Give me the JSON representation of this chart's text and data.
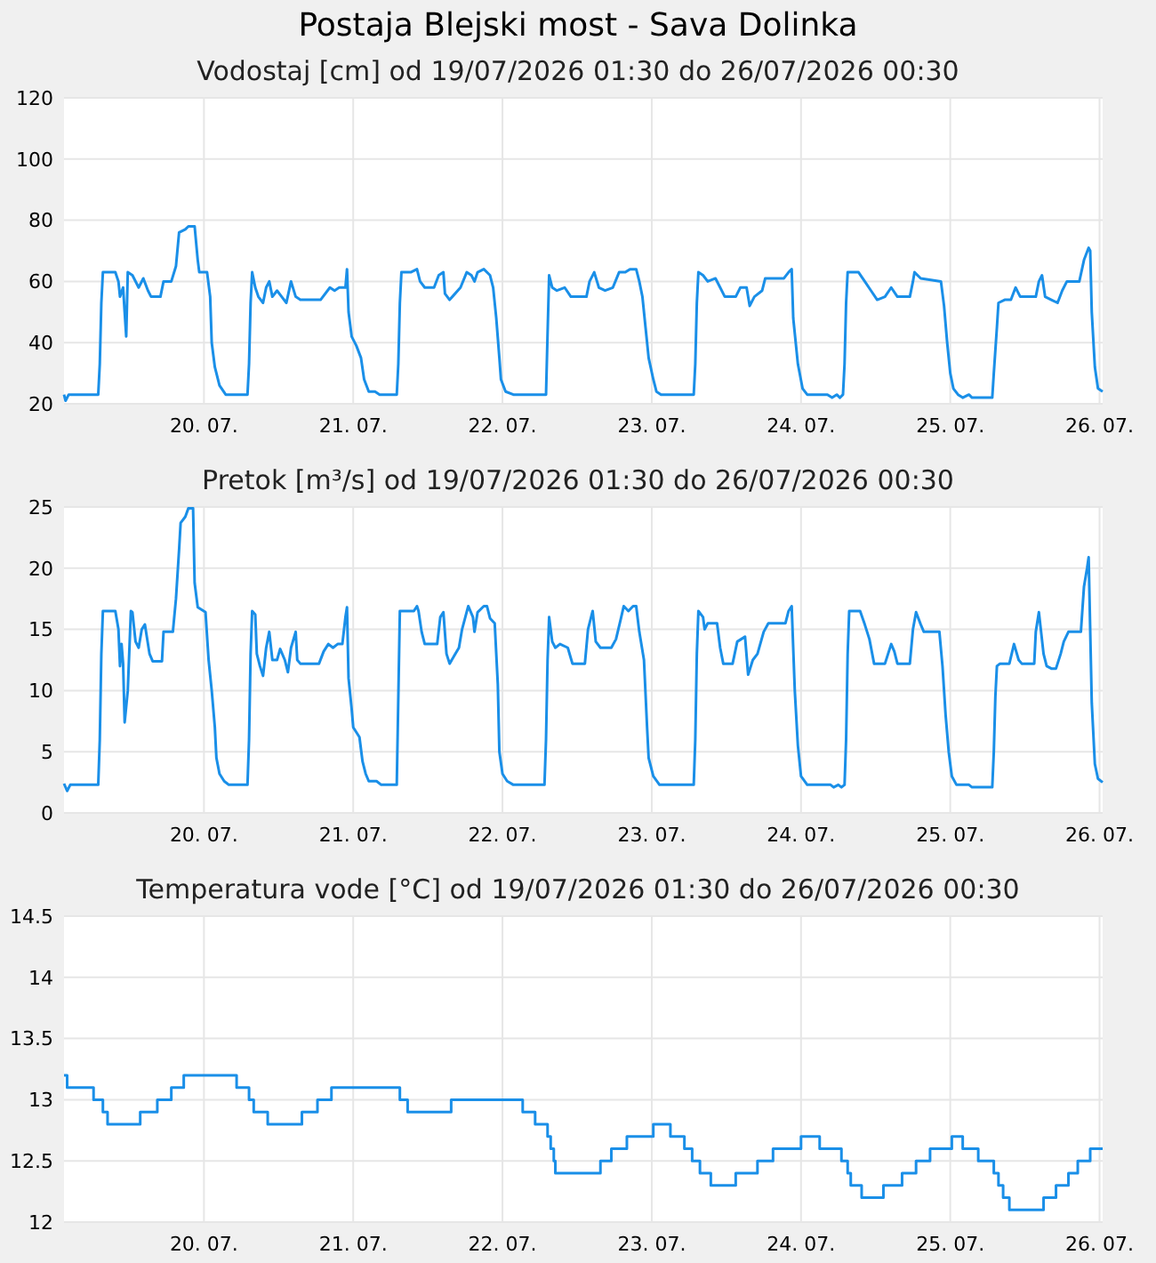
{
  "chart_data": [
    {
      "type": "line",
      "title": "Postaja Blejski most - Sava Dolinka",
      "subtitle": "Vodostaj [cm] od 19/07/2026 01:30 do 26/07/2026 00:30",
      "color": "#1a8fe8",
      "grid": true,
      "xlim": [
        "2026-07-19T01:30",
        "2026-07-26T00:30"
      ],
      "xticks": [
        {
          "value": "2026-07-20",
          "label": "20. 07."
        },
        {
          "value": "2026-07-21",
          "label": "21. 07."
        },
        {
          "value": "2026-07-22",
          "label": "22. 07."
        },
        {
          "value": "2026-07-23",
          "label": "23. 07."
        },
        {
          "value": "2026-07-24",
          "label": "24. 07."
        },
        {
          "value": "2026-07-25",
          "label": "25. 07."
        },
        {
          "value": "2026-07-26",
          "label": "26. 07."
        }
      ],
      "ylim": [
        20,
        120
      ],
      "yticks": [
        20,
        40,
        60,
        80,
        100,
        120
      ],
      "x": [
        "2026-07-19T01:30",
        "2026-07-19T01:45",
        "2026-07-19T02:15",
        "2026-07-19T07:00",
        "2026-07-19T07:15",
        "2026-07-19T07:30",
        "2026-07-19T07:45",
        "2026-07-19T09:45",
        "2026-07-19T10:15",
        "2026-07-19T10:30",
        "2026-07-19T11:00",
        "2026-07-19T11:15",
        "2026-07-19T11:30",
        "2026-07-19T11:45",
        "2026-07-19T12:30",
        "2026-07-19T13:30",
        "2026-07-19T14:15",
        "2026-07-19T15:00",
        "2026-07-19T15:30",
        "2026-07-19T17:00",
        "2026-07-19T17:30",
        "2026-07-19T18:45",
        "2026-07-19T19:30",
        "2026-07-19T20:00",
        "2026-07-19T21:00",
        "2026-07-19T21:30",
        "2026-07-19T22:30",
        "2026-07-19T23:00",
        "2026-07-19T23:15",
        "2026-07-20T00:30",
        "2026-07-20T01:00",
        "2026-07-20T01:15",
        "2026-07-20T01:45",
        "2026-07-20T02:30",
        "2026-07-20T03:30",
        "2026-07-20T07:00",
        "2026-07-20T07:15",
        "2026-07-20T07:30",
        "2026-07-20T07:45",
        "2026-07-20T08:15",
        "2026-07-20T08:45",
        "2026-07-20T09:30",
        "2026-07-20T10:00",
        "2026-07-20T10:30",
        "2026-07-20T11:00",
        "2026-07-20T11:45",
        "2026-07-20T12:30",
        "2026-07-20T13:15",
        "2026-07-20T14:00",
        "2026-07-20T14:45",
        "2026-07-20T15:30",
        "2026-07-20T18:45",
        "2026-07-20T20:15",
        "2026-07-20T21:00",
        "2026-07-20T21:45",
        "2026-07-20T22:45",
        "2026-07-20T23:00",
        "2026-07-20T23:15",
        "2026-07-20T23:45",
        "2026-07-21T00:30",
        "2026-07-21T01:15",
        "2026-07-21T01:45",
        "2026-07-21T02:30",
        "2026-07-21T03:30",
        "2026-07-21T04:15",
        "2026-07-21T07:00",
        "2026-07-21T07:15",
        "2026-07-21T07:30",
        "2026-07-21T07:45",
        "2026-07-21T09:15",
        "2026-07-21T10:15",
        "2026-07-21T10:45",
        "2026-07-21T11:30",
        "2026-07-21T13:00",
        "2026-07-21T13:45",
        "2026-07-21T14:30",
        "2026-07-21T14:45",
        "2026-07-21T15:30",
        "2026-07-21T17:15",
        "2026-07-21T18:15",
        "2026-07-21T19:00",
        "2026-07-21T19:30",
        "2026-07-21T20:00",
        "2026-07-21T21:00",
        "2026-07-21T22:00",
        "2026-07-21T22:30",
        "2026-07-21T23:00",
        "2026-07-21T23:30",
        "2026-07-21T23:45",
        "2026-07-22T00:30",
        "2026-07-22T01:45",
        "2026-07-22T07:00",
        "2026-07-22T07:15",
        "2026-07-22T07:30",
        "2026-07-22T08:00",
        "2026-07-22T08:45",
        "2026-07-22T10:00",
        "2026-07-22T11:00",
        "2026-07-22T13:30",
        "2026-07-22T14:00",
        "2026-07-22T14:45",
        "2026-07-22T15:30",
        "2026-07-22T16:30",
        "2026-07-22T17:45",
        "2026-07-22T18:45",
        "2026-07-22T19:45",
        "2026-07-22T20:30",
        "2026-07-22T21:30",
        "2026-07-22T22:00",
        "2026-07-22T22:30",
        "2026-07-22T23:00",
        "2026-07-22T23:30",
        "2026-07-23T00:15",
        "2026-07-23T00:45",
        "2026-07-23T01:30",
        "2026-07-23T06:45",
        "2026-07-23T07:00",
        "2026-07-23T07:15",
        "2026-07-23T07:30",
        "2026-07-23T08:15",
        "2026-07-23T09:00",
        "2026-07-23T10:15",
        "2026-07-23T11:00",
        "2026-07-23T11:45",
        "2026-07-23T13:30",
        "2026-07-23T14:15",
        "2026-07-23T15:15",
        "2026-07-23T15:45",
        "2026-07-23T16:30",
        "2026-07-23T17:45",
        "2026-07-23T18:15",
        "2026-07-23T21:15",
        "2026-07-23T22:00",
        "2026-07-23T22:30",
        "2026-07-23T22:45",
        "2026-07-23T23:30",
        "2026-07-24T00:15",
        "2026-07-24T01:00",
        "2026-07-24T04:15",
        "2026-07-24T05:00",
        "2026-07-24T05:45",
        "2026-07-24T06:15",
        "2026-07-24T06:45",
        "2026-07-24T07:00",
        "2026-07-24T07:15",
        "2026-07-24T07:30",
        "2026-07-24T09:15",
        "2026-07-24T10:15",
        "2026-07-24T11:15",
        "2026-07-24T12:15",
        "2026-07-24T13:30",
        "2026-07-24T14:30",
        "2026-07-24T15:30",
        "2026-07-24T17:30",
        "2026-07-24T18:00",
        "2026-07-24T18:15",
        "2026-07-24T19:15",
        "2026-07-24T22:30",
        "2026-07-24T23:00",
        "2026-07-24T23:30",
        "2026-07-25T00:00",
        "2026-07-25T00:30",
        "2026-07-25T01:15",
        "2026-07-25T02:00",
        "2026-07-25T03:00",
        "2026-07-25T03:30",
        "2026-07-25T06:45",
        "2026-07-25T07:00",
        "2026-07-25T07:30",
        "2026-07-25T07:45",
        "2026-07-25T08:45",
        "2026-07-25T09:45",
        "2026-07-25T10:30",
        "2026-07-25T11:15",
        "2026-07-25T13:45",
        "2026-07-25T14:15",
        "2026-07-25T14:45",
        "2026-07-25T15:15",
        "2026-07-25T16:15",
        "2026-07-25T17:15",
        "2026-07-25T18:00",
        "2026-07-25T18:45",
        "2026-07-25T20:45",
        "2026-07-25T21:30",
        "2026-07-25T22:15",
        "2026-07-25T22:30",
        "2026-07-25T22:45",
        "2026-07-25T23:15",
        "2026-07-25T23:45",
        "2026-07-26T00:30"
      ],
      "values": [
        23,
        21,
        23,
        23,
        33,
        53,
        63,
        63,
        60,
        55,
        58,
        50,
        42,
        63,
        62,
        58,
        61,
        57,
        55,
        55,
        60,
        60,
        65,
        76,
        77,
        78,
        78,
        67,
        63,
        63,
        55,
        40,
        32,
        26,
        23,
        23,
        33,
        53,
        63,
        58,
        55,
        53,
        58,
        60,
        55,
        57,
        55,
        53,
        60,
        55,
        54,
        54,
        58,
        57,
        58,
        58,
        64,
        50,
        42,
        39,
        35,
        28,
        24,
        24,
        23,
        23,
        33,
        53,
        63,
        63,
        64,
        60,
        58,
        58,
        62,
        63,
        56,
        54,
        58,
        63,
        62,
        60,
        63,
        64,
        62,
        58,
        48,
        35,
        28,
        24,
        23,
        23,
        43,
        62,
        58,
        57,
        58,
        55,
        55,
        60,
        63,
        58,
        57,
        58,
        63,
        63,
        64,
        64,
        60,
        55,
        45,
        35,
        28,
        24,
        23,
        23,
        33,
        53,
        63,
        62,
        60,
        61,
        58,
        55,
        55,
        58,
        58,
        52,
        55,
        57,
        61,
        61,
        63,
        64,
        48,
        33,
        25,
        23,
        23,
        22,
        23,
        22,
        23,
        33,
        53,
        63,
        63,
        60,
        57,
        54,
        55,
        58,
        55,
        55,
        60,
        63,
        61,
        60,
        52,
        40,
        30,
        25,
        23,
        22,
        23,
        22,
        22,
        30,
        45,
        53,
        54,
        54,
        58,
        55,
        55,
        60,
        62,
        55,
        54,
        53,
        57,
        60,
        60,
        67,
        71,
        70,
        50,
        32,
        25,
        24
      ]
    },
    {
      "type": "line",
      "title": "Pretok [m³/s] od 19/07/2026 01:30 do 26/07/2026 00:30",
      "color": "#1a8fe8",
      "grid": true,
      "xlim": [
        "2026-07-19T01:30",
        "2026-07-26T00:30"
      ],
      "xticks": [
        {
          "value": "2026-07-20",
          "label": "20. 07."
        },
        {
          "value": "2026-07-21",
          "label": "21. 07."
        },
        {
          "value": "2026-07-22",
          "label": "22. 07."
        },
        {
          "value": "2026-07-23",
          "label": "23. 07."
        },
        {
          "value": "2026-07-24",
          "label": "24. 07."
        },
        {
          "value": "2026-07-25",
          "label": "25. 07."
        },
        {
          "value": "2026-07-26",
          "label": "26. 07."
        }
      ],
      "ylim": [
        0,
        25
      ],
      "yticks": [
        0,
        5,
        10,
        15,
        20,
        25
      ],
      "x": [
        "2026-07-19T01:30",
        "2026-07-19T02:00",
        "2026-07-19T02:30",
        "2026-07-19T07:00",
        "2026-07-19T07:15",
        "2026-07-19T07:30",
        "2026-07-19T07:45",
        "2026-07-19T09:45",
        "2026-07-19T10:15",
        "2026-07-19T10:30",
        "2026-07-19T10:45",
        "2026-07-19T11:00",
        "2026-07-19T11:15",
        "2026-07-19T11:45",
        "2026-07-19T12:15",
        "2026-07-19T12:30",
        "2026-07-19T13:00",
        "2026-07-19T13:30",
        "2026-07-19T14:00",
        "2026-07-19T14:30",
        "2026-07-19T15:15",
        "2026-07-19T15:45",
        "2026-07-19T17:15",
        "2026-07-19T17:30",
        "2026-07-19T19:00",
        "2026-07-19T19:30",
        "2026-07-19T20:00",
        "2026-07-19T20:15",
        "2026-07-19T21:00",
        "2026-07-19T21:30",
        "2026-07-19T22:15",
        "2026-07-19T22:30",
        "2026-07-19T23:00",
        "2026-07-20T00:15",
        "2026-07-20T00:45",
        "2026-07-20T01:15",
        "2026-07-20T01:45",
        "2026-07-20T02:00",
        "2026-07-20T02:30",
        "2026-07-20T03:15",
        "2026-07-20T04:00",
        "2026-07-20T07:00",
        "2026-07-20T07:15",
        "2026-07-20T07:30",
        "2026-07-20T07:45",
        "2026-07-20T08:15",
        "2026-07-20T08:30",
        "2026-07-20T09:00",
        "2026-07-20T09:30",
        "2026-07-20T10:00",
        "2026-07-20T10:30",
        "2026-07-20T11:00",
        "2026-07-20T11:45",
        "2026-07-20T12:15",
        "2026-07-20T13:00",
        "2026-07-20T13:30",
        "2026-07-20T14:00",
        "2026-07-20T14:45",
        "2026-07-20T15:00",
        "2026-07-20T15:30",
        "2026-07-20T18:30",
        "2026-07-20T19:15",
        "2026-07-20T20:00",
        "2026-07-20T20:45",
        "2026-07-20T21:30",
        "2026-07-20T22:15",
        "2026-07-20T22:45",
        "2026-07-20T23:00",
        "2026-07-20T23:15",
        "2026-07-20T23:45",
        "2026-07-21T00:00",
        "2026-07-21T01:00",
        "2026-07-21T01:30",
        "2026-07-21T02:00",
        "2026-07-21T02:30",
        "2026-07-21T03:45",
        "2026-07-21T04:30",
        "2026-07-21T07:00",
        "2026-07-21T07:15",
        "2026-07-21T07:30",
        "2026-07-21T09:45",
        "2026-07-21T10:15",
        "2026-07-21T10:30",
        "2026-07-21T11:00",
        "2026-07-21T11:30",
        "2026-07-21T13:30",
        "2026-07-21T14:00",
        "2026-07-21T14:30",
        "2026-07-21T15:00",
        "2026-07-21T15:30",
        "2026-07-21T17:00",
        "2026-07-21T17:30",
        "2026-07-21T18:30",
        "2026-07-21T19:15",
        "2026-07-21T19:30",
        "2026-07-21T20:00",
        "2026-07-21T21:00",
        "2026-07-21T21:30",
        "2026-07-21T22:00",
        "2026-07-21T22:45",
        "2026-07-21T23:15",
        "2026-07-21T23:30",
        "2026-07-22T00:00",
        "2026-07-22T00:45",
        "2026-07-22T01:45",
        "2026-07-22T06:45",
        "2026-07-22T07:00",
        "2026-07-22T07:15",
        "2026-07-22T07:30",
        "2026-07-22T08:00",
        "2026-07-22T08:30",
        "2026-07-22T09:15",
        "2026-07-22T10:30",
        "2026-07-22T11:15",
        "2026-07-22T13:15",
        "2026-07-22T13:45",
        "2026-07-22T14:30",
        "2026-07-22T15:00",
        "2026-07-22T15:45",
        "2026-07-22T17:30",
        "2026-07-22T18:15",
        "2026-07-22T19:00",
        "2026-07-22T19:30",
        "2026-07-22T20:15",
        "2026-07-22T21:00",
        "2026-07-22T21:30",
        "2026-07-22T22:00",
        "2026-07-22T22:45",
        "2026-07-22T23:15",
        "2026-07-22T23:30",
        "2026-07-23T00:15",
        "2026-07-23T01:15",
        "2026-07-23T06:45",
        "2026-07-23T07:00",
        "2026-07-23T07:15",
        "2026-07-23T07:30",
        "2026-07-23T08:15",
        "2026-07-23T08:30",
        "2026-07-23T09:00",
        "2026-07-23T10:30",
        "2026-07-23T11:00",
        "2026-07-23T11:30",
        "2026-07-23T13:00",
        "2026-07-23T13:45",
        "2026-07-23T15:00",
        "2026-07-23T15:30",
        "2026-07-23T16:15",
        "2026-07-23T17:00",
        "2026-07-23T18:00",
        "2026-07-23T18:45",
        "2026-07-23T21:30",
        "2026-07-23T22:00",
        "2026-07-23T22:30",
        "2026-07-23T23:00",
        "2026-07-23T23:30",
        "2026-07-24T00:00",
        "2026-07-24T01:00",
        "2026-07-24T04:45",
        "2026-07-24T05:15",
        "2026-07-24T06:00",
        "2026-07-24T06:30",
        "2026-07-24T07:00",
        "2026-07-24T07:15",
        "2026-07-24T07:30",
        "2026-07-24T07:45",
        "2026-07-24T09:30",
        "2026-07-24T10:15",
        "2026-07-24T11:00",
        "2026-07-24T11:45",
        "2026-07-24T13:30",
        "2026-07-24T14:30",
        "2026-07-24T15:00",
        "2026-07-24T15:30",
        "2026-07-24T17:30",
        "2026-07-24T18:00",
        "2026-07-24T18:30",
        "2026-07-24T19:15",
        "2026-07-24T19:45",
        "2026-07-24T22:15",
        "2026-07-24T22:45",
        "2026-07-24T23:15",
        "2026-07-24T23:45",
        "2026-07-25T00:15",
        "2026-07-25T01:00",
        "2026-07-25T03:00",
        "2026-07-25T03:30",
        "2026-07-25T06:45",
        "2026-07-25T07:00",
        "2026-07-25T07:15",
        "2026-07-25T07:30",
        "2026-07-25T08:00",
        "2026-07-25T09:30",
        "2026-07-25T10:15",
        "2026-07-25T11:00",
        "2026-07-25T11:30",
        "2026-07-25T13:30",
        "2026-07-25T13:45",
        "2026-07-25T14:15",
        "2026-07-25T15:00",
        "2026-07-25T15:30",
        "2026-07-25T16:15",
        "2026-07-25T17:00",
        "2026-07-25T17:45",
        "2026-07-25T18:15",
        "2026-07-25T19:00",
        "2026-07-25T21:00",
        "2026-07-25T21:30",
        "2026-07-25T22:00",
        "2026-07-25T22:15",
        "2026-07-25T22:45",
        "2026-07-25T23:15",
        "2026-07-25T23:45",
        "2026-07-26T00:30"
      ],
      "values": [
        2.4,
        1.8,
        2.3,
        2.3,
        6,
        13,
        16.5,
        16.5,
        15,
        12,
        13.8,
        12.2,
        7.4,
        10,
        16.5,
        16.4,
        14,
        13.5,
        15,
        15.4,
        13,
        12.4,
        12.4,
        14.8,
        14.8,
        17.5,
        21.5,
        23.7,
        24.2,
        24.9,
        24.9,
        18.8,
        16.8,
        16.4,
        12.5,
        10,
        7,
        4.5,
        3.2,
        2.6,
        2.3,
        2.3,
        6,
        13,
        16.5,
        16.2,
        13,
        12,
        11.2,
        13.5,
        14.8,
        12.5,
        12.5,
        13.4,
        12.5,
        11.5,
        13.5,
        14.8,
        12.5,
        12.2,
        12.2,
        13.2,
        13.8,
        13.5,
        13.8,
        13.8,
        16,
        16.8,
        11,
        8.5,
        7,
        6.2,
        4.2,
        3.2,
        2.6,
        2.6,
        2.3,
        2.3,
        9.4,
        16.5,
        16.5,
        16.9,
        16.5,
        14.8,
        13.8,
        13.8,
        16,
        16.4,
        13,
        12.2,
        13.5,
        15,
        16.9,
        16,
        14.8,
        16.4,
        16.9,
        16.9,
        15.9,
        15.5,
        10.5,
        5,
        3.2,
        2.6,
        2.3,
        2.3,
        6,
        12.5,
        16,
        14,
        13.5,
        13.8,
        13.5,
        12.2,
        12.2,
        15,
        16.5,
        14,
        13.5,
        13.5,
        14.2,
        15.8,
        16.9,
        16.5,
        16.9,
        16.9,
        14.8,
        12.5,
        7,
        4.5,
        3,
        2.3,
        2.3,
        6,
        13,
        16.5,
        16,
        15,
        15.5,
        15.5,
        13.5,
        12.2,
        12.2,
        14,
        14.4,
        11.3,
        12.5,
        13,
        14.8,
        15.5,
        15.5,
        16.5,
        16.9,
        10,
        5.5,
        3,
        2.3,
        2.3,
        2.1,
        2.3,
        2.1,
        2.3,
        6,
        13,
        16.5,
        16.5,
        15.4,
        14.2,
        12.2,
        12.2,
        13.8,
        13.2,
        12.2,
        12.2,
        15,
        16.4,
        15.4,
        14.8,
        14.8,
        12,
        8,
        5,
        3,
        2.3,
        2.3,
        2.1,
        2.1,
        5,
        9.5,
        12,
        12.2,
        12.2,
        13.8,
        12.5,
        12.2,
        12.2,
        14.8,
        16.4,
        13,
        12,
        11.8,
        11.8,
        13,
        14,
        14.8,
        14.8,
        18.5,
        20,
        20.9,
        9,
        4,
        2.8,
        2.5
      ]
    },
    {
      "type": "step",
      "title": "Temperatura vode [°C] od 19/07/2026 01:30 do 26/07/2026 00:30",
      "color": "#1a8fe8",
      "grid": true,
      "xlim": [
        "2026-07-19T01:30",
        "2026-07-26T00:30"
      ],
      "xticks": [
        {
          "value": "2026-07-20",
          "label": "20. 07."
        },
        {
          "value": "2026-07-21",
          "label": "21. 07."
        },
        {
          "value": "2026-07-22",
          "label": "22. 07."
        },
        {
          "value": "2026-07-23",
          "label": "23. 07."
        },
        {
          "value": "2026-07-24",
          "label": "24. 07."
        },
        {
          "value": "2026-07-25",
          "label": "25. 07."
        },
        {
          "value": "2026-07-26",
          "label": "26. 07."
        }
      ],
      "ylim": [
        12,
        14.5
      ],
      "yticks": [
        12,
        12.5,
        13,
        13.5,
        14,
        14.5
      ],
      "x": [
        "2026-07-19T01:30",
        "2026-07-19T02:00",
        "2026-07-19T06:15",
        "2026-07-19T07:45",
        "2026-07-19T08:30",
        "2026-07-19T13:45",
        "2026-07-19T16:30",
        "2026-07-19T18:45",
        "2026-07-19T20:45",
        "2026-07-20T05:15",
        "2026-07-20T07:15",
        "2026-07-20T08:00",
        "2026-07-20T10:15",
        "2026-07-20T15:45",
        "2026-07-20T18:15",
        "2026-07-20T20:30",
        "2026-07-21T07:30",
        "2026-07-21T08:45",
        "2026-07-21T15:45",
        "2026-07-22T03:15",
        "2026-07-22T05:15",
        "2026-07-22T07:15",
        "2026-07-22T07:45",
        "2026-07-22T08:15",
        "2026-07-22T08:30",
        "2026-07-22T15:45",
        "2026-07-22T17:30",
        "2026-07-22T20:00",
        "2026-07-23T00:15",
        "2026-07-23T03:00",
        "2026-07-23T05:15",
        "2026-07-23T06:30",
        "2026-07-23T07:45",
        "2026-07-23T09:30",
        "2026-07-23T13:30",
        "2026-07-23T17:00",
        "2026-07-23T19:30",
        "2026-07-24T00:00",
        "2026-07-24T03:00",
        "2026-07-24T06:30",
        "2026-07-24T07:30",
        "2026-07-24T08:00",
        "2026-07-24T09:45",
        "2026-07-24T13:15",
        "2026-07-24T16:15",
        "2026-07-24T18:30",
        "2026-07-24T20:45",
        "2026-07-25T00:15",
        "2026-07-25T02:00",
        "2026-07-25T04:30",
        "2026-07-25T07:00",
        "2026-07-25T07:45",
        "2026-07-25T08:30",
        "2026-07-25T09:30",
        "2026-07-25T15:00",
        "2026-07-25T17:00",
        "2026-07-25T19:00",
        "2026-07-25T20:30",
        "2026-07-25T22:30",
        "2026-07-26T00:30"
      ],
      "values": [
        13.2,
        13.1,
        13,
        12.9,
        12.8,
        12.9,
        13,
        13.1,
        13.2,
        13.1,
        13,
        12.9,
        12.8,
        12.9,
        13,
        13.1,
        13,
        12.9,
        13,
        12.9,
        12.8,
        12.7,
        12.6,
        12.5,
        12.4,
        12.5,
        12.6,
        12.7,
        12.8,
        12.7,
        12.6,
        12.5,
        12.4,
        12.3,
        12.4,
        12.5,
        12.6,
        12.7,
        12.6,
        12.5,
        12.4,
        12.3,
        12.2,
        12.3,
        12.4,
        12.5,
        12.6,
        12.7,
        12.6,
        12.5,
        12.4,
        12.3,
        12.2,
        12.1,
        12.2,
        12.3,
        12.4,
        12.5,
        12.6,
        12.6
      ]
    }
  ]
}
